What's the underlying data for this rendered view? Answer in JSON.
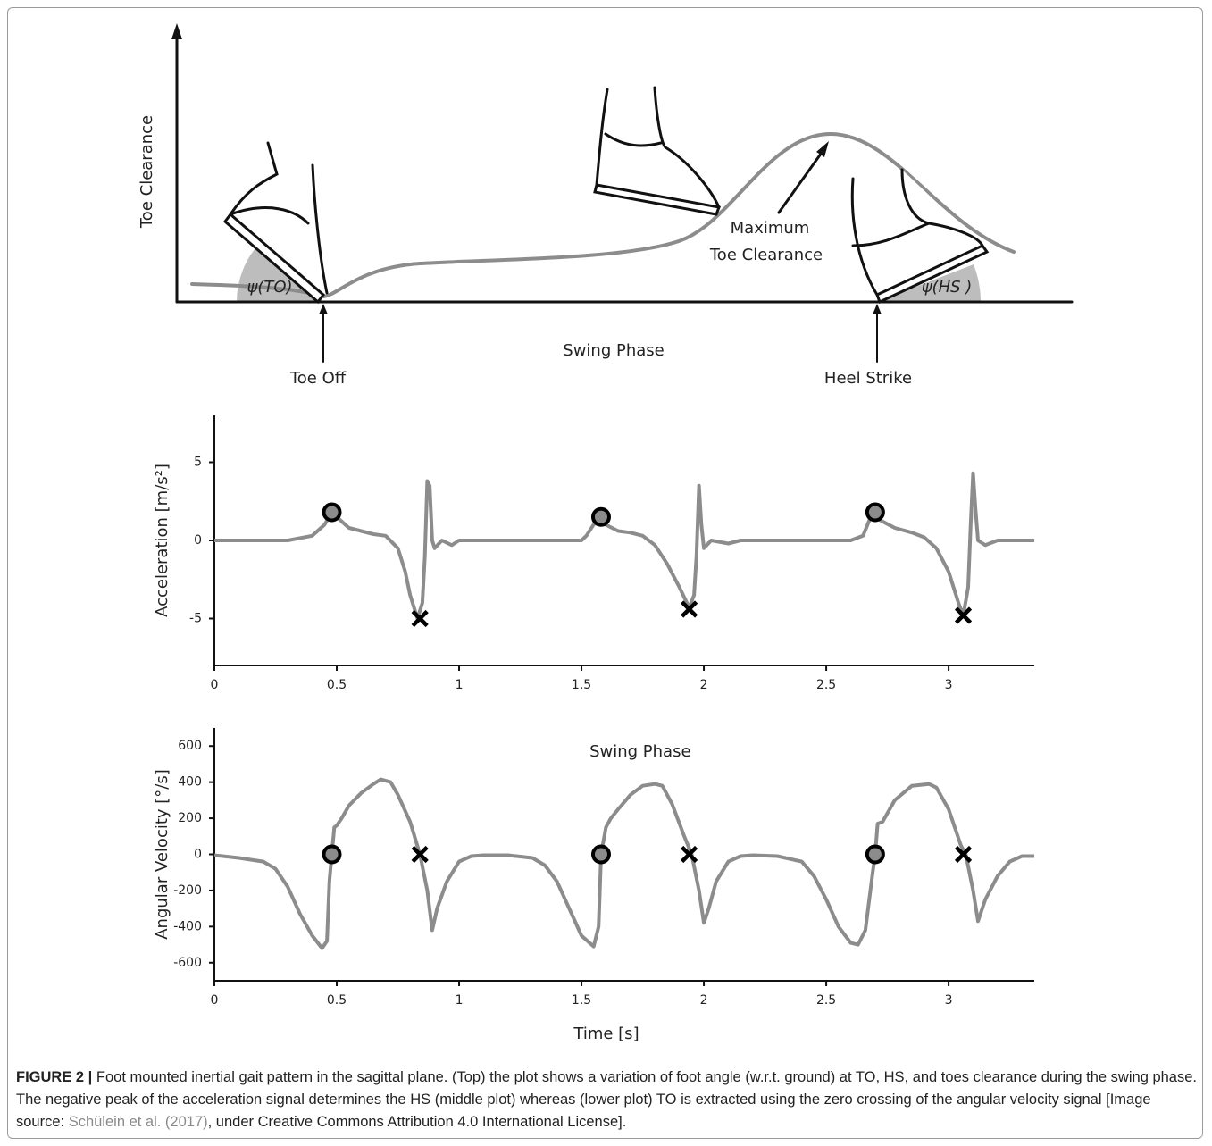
{
  "diagram": {
    "y_axis_label": "Toe Clearance",
    "angle_to": "ψ(TO)",
    "angle_hs": "ψ(HS )",
    "max_line1": "Maximum",
    "max_line2": "Toe Clearance",
    "phase": "Swing Phase",
    "toe_off": "Toe Off",
    "heel_strike": "Heel Strike"
  },
  "chart_data": [
    {
      "type": "line",
      "ylabel": "Acceleration [m/s²]",
      "xlim": [
        0,
        3.35
      ],
      "ylim": [
        -8,
        8
      ],
      "xticks": [
        0,
        0.5,
        1,
        1.5,
        2,
        2.5,
        3
      ],
      "yticks": [
        -5,
        0,
        5
      ],
      "color": "#8c8c8c",
      "x": [
        0,
        0.1,
        0.2,
        0.3,
        0.4,
        0.45,
        0.48,
        0.5,
        0.55,
        0.6,
        0.65,
        0.7,
        0.75,
        0.78,
        0.8,
        0.83,
        0.85,
        0.86,
        0.87,
        0.88,
        0.89,
        0.9,
        0.93,
        0.97,
        1.0,
        1.1,
        1.2,
        1.3,
        1.4,
        1.5,
        1.52,
        1.57,
        1.6,
        1.65,
        1.7,
        1.75,
        1.8,
        1.85,
        1.9,
        1.94,
        1.96,
        1.97,
        1.98,
        1.99,
        2.0,
        2.03,
        2.1,
        2.15,
        2.3,
        2.45,
        2.6,
        2.65,
        2.69,
        2.72,
        2.78,
        2.85,
        2.9,
        2.95,
        3.0,
        3.04,
        3.06,
        3.08,
        3.09,
        3.1,
        3.11,
        3.12,
        3.15,
        3.2,
        3.35
      ],
      "values": [
        0,
        0,
        0,
        0,
        0.3,
        1,
        1.8,
        1.5,
        0.8,
        0.6,
        0.4,
        0.3,
        -0.5,
        -2,
        -3.5,
        -5,
        -4,
        -1,
        3.8,
        3.5,
        0,
        -0.5,
        0,
        -0.3,
        0,
        0,
        0,
        0,
        0,
        0,
        0.3,
        1.5,
        1,
        0.6,
        0.5,
        0.3,
        -0.3,
        -1.5,
        -3,
        -4.3,
        -3.5,
        -1,
        3.5,
        1,
        -0.5,
        0,
        -0.2,
        0,
        0,
        0,
        0,
        0.3,
        1.8,
        1.3,
        0.8,
        0.5,
        0.2,
        -0.5,
        -2,
        -4,
        -4.8,
        -3,
        1,
        4.3,
        2,
        0,
        -0.3,
        0,
        0
      ],
      "markers": [
        {
          "marker": "circle",
          "x": [
            0.48,
            1.58,
            2.7
          ],
          "y": [
            1.8,
            1.5,
            1.8
          ]
        },
        {
          "marker": "cross",
          "x": [
            0.84,
            1.94,
            3.06
          ],
          "y": [
            -5,
            -4.4,
            -4.8
          ]
        }
      ]
    },
    {
      "type": "line",
      "title": "Swing Phase",
      "xlabel": "Time [s]",
      "ylabel": "Angular Velocity [°/s]",
      "xlim": [
        0,
        3.35
      ],
      "ylim": [
        -700,
        700
      ],
      "xticks": [
        0,
        0.5,
        1,
        1.5,
        2,
        2.5,
        3
      ],
      "yticks": [
        -600,
        -400,
        -200,
        0,
        200,
        400,
        600
      ],
      "color": "#8c8c8c",
      "x": [
        0,
        0.1,
        0.2,
        0.25,
        0.3,
        0.35,
        0.4,
        0.44,
        0.46,
        0.47,
        0.48,
        0.49,
        0.5,
        0.52,
        0.55,
        0.6,
        0.65,
        0.68,
        0.72,
        0.75,
        0.8,
        0.84,
        0.87,
        0.89,
        0.91,
        0.95,
        1.0,
        1.05,
        1.1,
        1.2,
        1.3,
        1.35,
        1.4,
        1.45,
        1.5,
        1.55,
        1.57,
        1.58,
        1.6,
        1.62,
        1.65,
        1.7,
        1.75,
        1.8,
        1.83,
        1.87,
        1.92,
        1.95,
        1.98,
        2.0,
        2.02,
        2.05,
        2.1,
        2.15,
        2.2,
        2.3,
        2.4,
        2.45,
        2.5,
        2.55,
        2.6,
        2.63,
        2.66,
        2.69,
        2.7,
        2.71,
        2.73,
        2.78,
        2.85,
        2.92,
        2.95,
        3.0,
        3.05,
        3.07,
        3.1,
        3.12,
        3.15,
        3.2,
        3.25,
        3.3,
        3.35
      ],
      "values": [
        -5,
        -20,
        -40,
        -80,
        -180,
        -330,
        -450,
        -520,
        -480,
        -150,
        0,
        150,
        160,
        200,
        270,
        340,
        390,
        415,
        400,
        330,
        180,
        0,
        -200,
        -420,
        -300,
        -150,
        -40,
        -10,
        -5,
        -5,
        -20,
        -60,
        -150,
        -300,
        -450,
        -510,
        -400,
        0,
        150,
        200,
        250,
        330,
        380,
        390,
        380,
        280,
        100,
        0,
        -200,
        -380,
        -300,
        -150,
        -40,
        -10,
        -5,
        -10,
        -40,
        -120,
        -250,
        -400,
        -490,
        -500,
        -420,
        -100,
        0,
        170,
        180,
        300,
        380,
        390,
        370,
        250,
        50,
        0,
        -200,
        -370,
        -250,
        -120,
        -40,
        -10,
        -10
      ],
      "markers": [
        {
          "marker": "circle",
          "x": [
            0.48,
            1.58,
            2.7
          ],
          "y": [
            0,
            0,
            0
          ]
        },
        {
          "marker": "cross",
          "x": [
            0.84,
            1.94,
            3.06
          ],
          "y": [
            0,
            0,
            0
          ]
        }
      ]
    }
  ],
  "caption": {
    "label": "FIGURE 2 |",
    "text": " Foot mounted inertial gait pattern in the sagittal plane. (Top) the plot shows a variation of foot angle (w.r.t. ground) at TO, HS, and toes clearance during the swing phase. The negative peak of the acceleration signal determines the HS (middle plot) whereas (lower plot) TO is extracted using the zero crossing of the angular velocity signal [Image source: ",
    "source": "Schülein et al. (2017)",
    "license": ", under Creative Commons Attribution 4.0 International License]."
  }
}
